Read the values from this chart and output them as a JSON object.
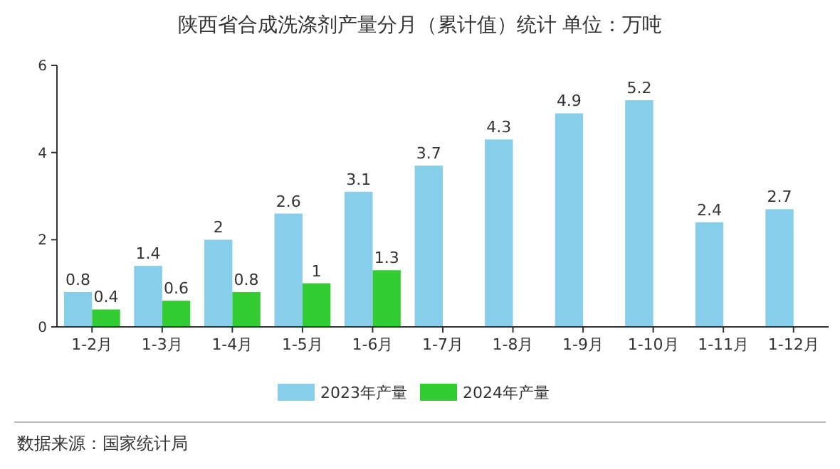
{
  "chart_data": {
    "type": "bar",
    "title": "陕西省合成洗涤剂产量分月（累计值）统计  单位：万吨",
    "categories": [
      "1-2月",
      "1-3月",
      "1-4月",
      "1-5月",
      "1-6月",
      "1-7月",
      "1-8月",
      "1-9月",
      "1-10月",
      "1-11月",
      "1-12月"
    ],
    "series": [
      {
        "name": "2023年产量",
        "color": "#87ceeb",
        "values": [
          0.8,
          1.4,
          2,
          2.6,
          3.1,
          3.7,
          4.3,
          4.9,
          5.2,
          2.4,
          2.7
        ]
      },
      {
        "name": "2024年产量",
        "color": "#33cc33",
        "values": [
          0.4,
          0.6,
          0.8,
          1,
          1.3,
          null,
          null,
          null,
          null,
          null,
          null
        ]
      }
    ],
    "ylim": [
      0,
      6
    ],
    "yticks": [
      0,
      2,
      4,
      6
    ],
    "data_labels": true,
    "legend": "bottom",
    "annotations": [
      "数据来源：国家统计局"
    ]
  }
}
